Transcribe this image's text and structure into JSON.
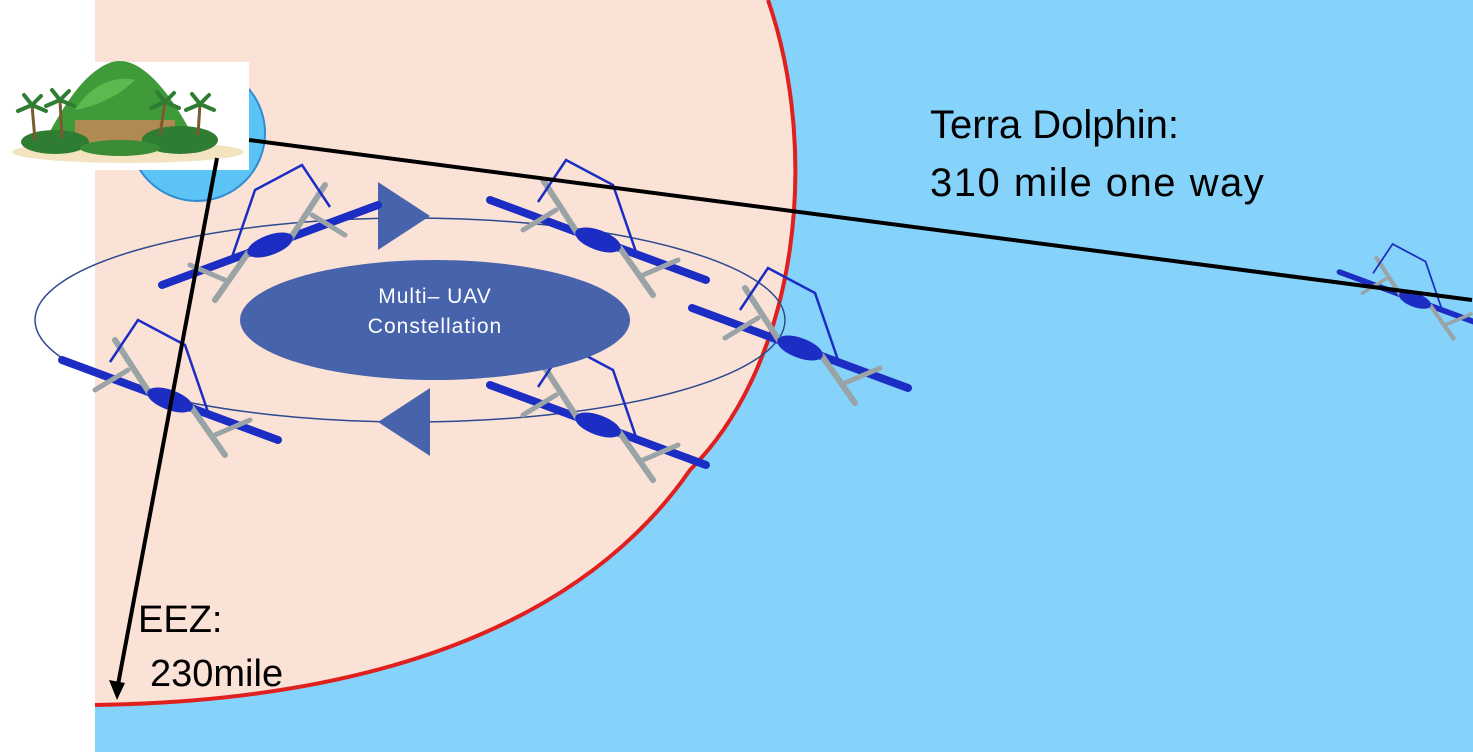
{
  "colors": {
    "ocean": "#85d3fb",
    "eez_zone": "#fbe2d6",
    "eez_boundary": "#e0201e",
    "constellation_fill": "#4663ac",
    "uav_body": "#1c2dc4",
    "uav_wing": "#9aa3a6",
    "island_halo": "#5bc3f5"
  },
  "constellation": {
    "line1": "Multi– UAV",
    "line2": "Constellation"
  },
  "terra_dolphin": {
    "title": "Terra Dolphin:",
    "range": "310 mile one way"
  },
  "eez": {
    "title": "EEZ:",
    "range": "230mile"
  }
}
